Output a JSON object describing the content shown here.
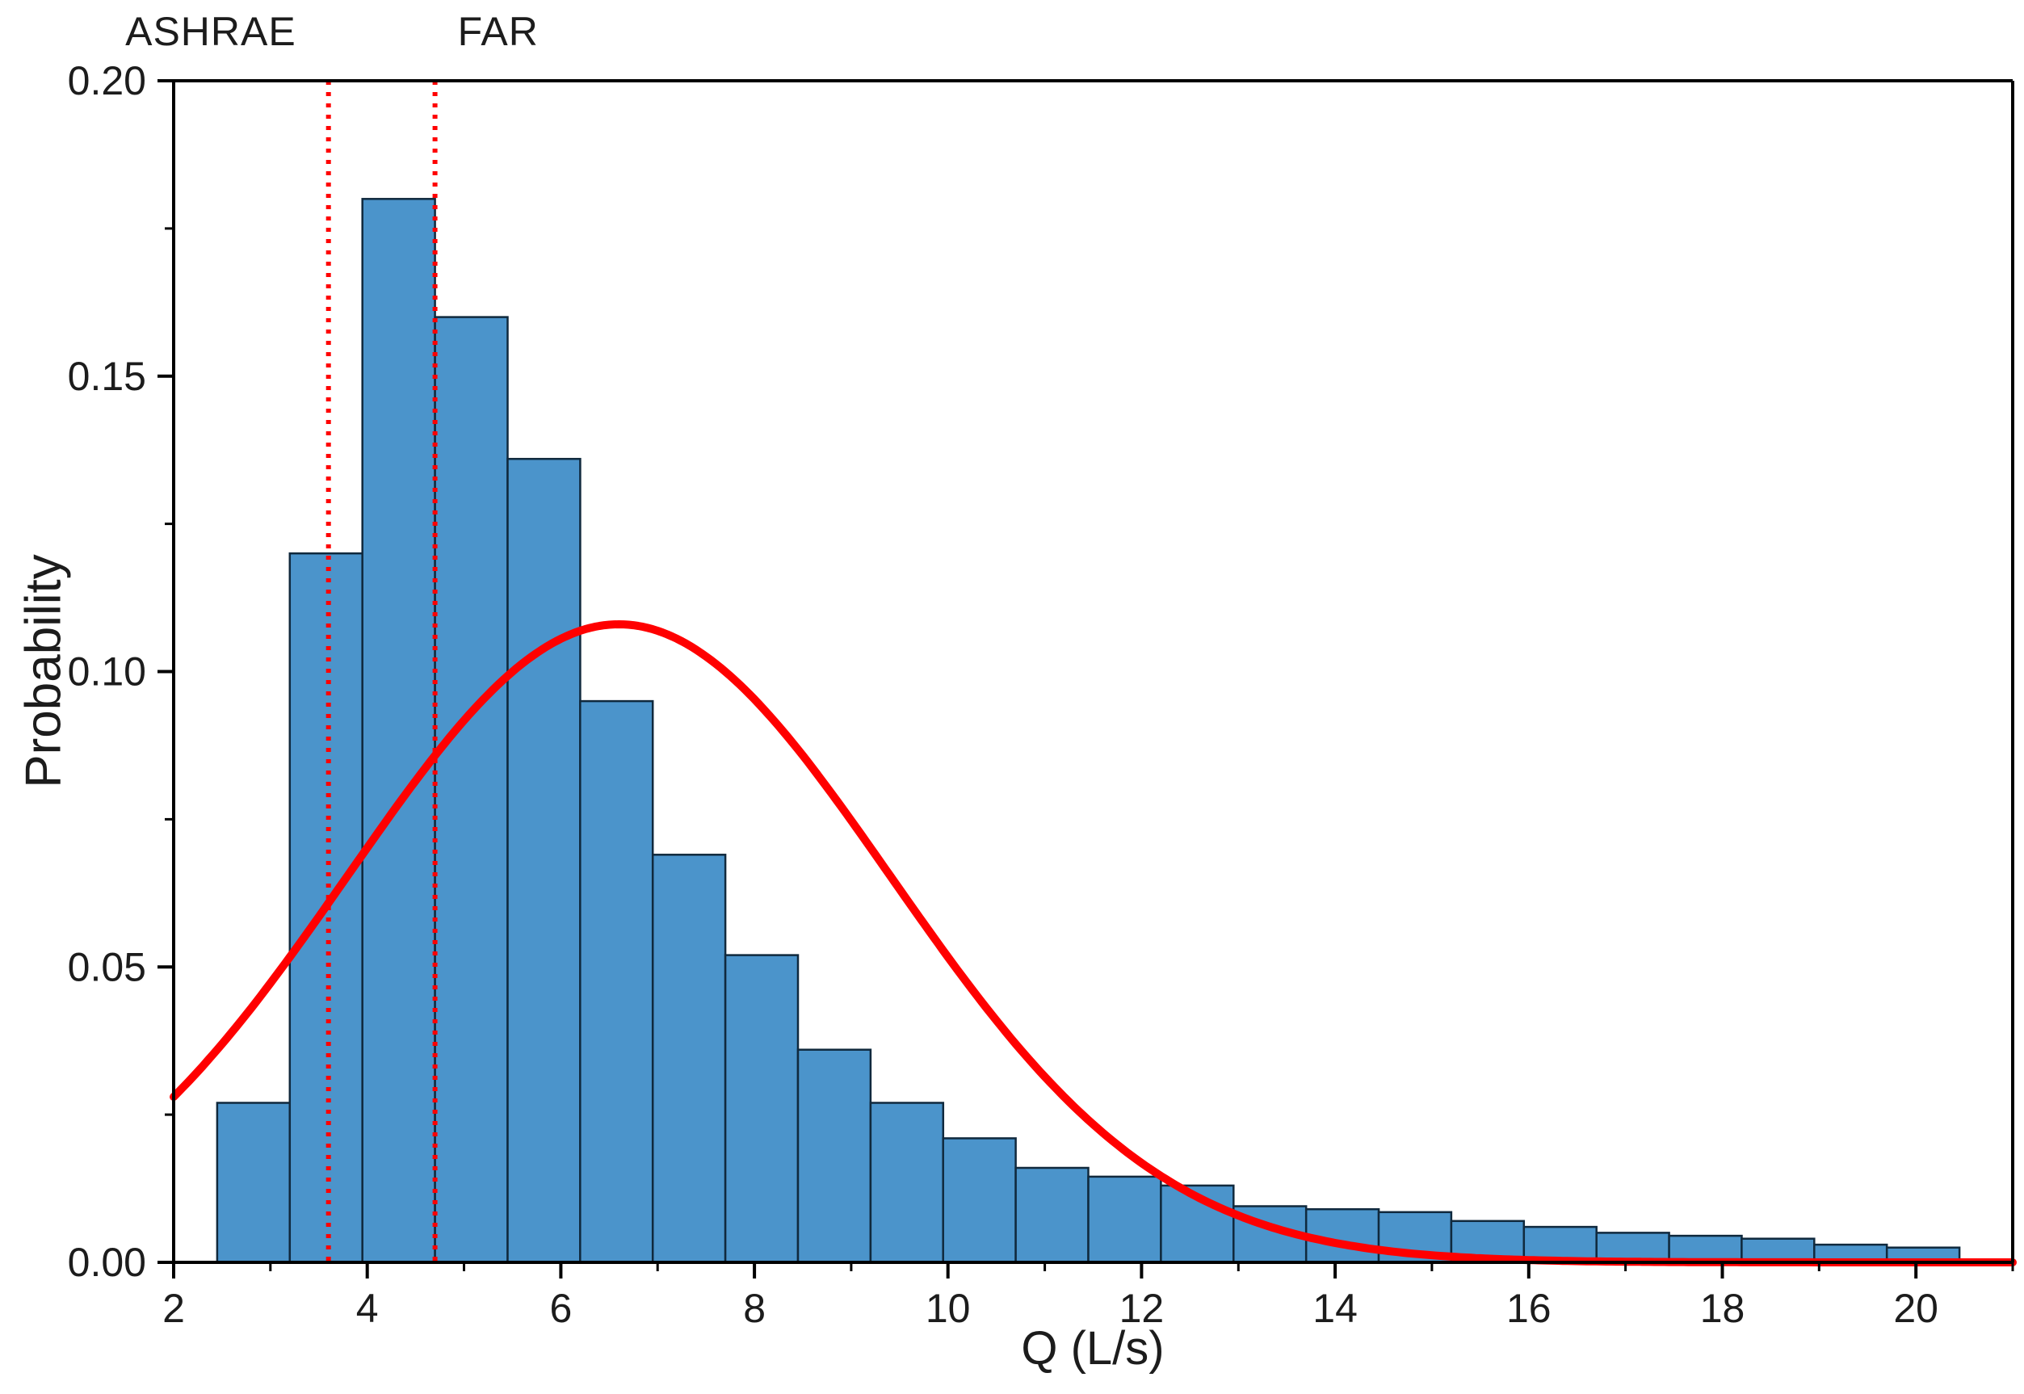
{
  "figure": {
    "background": "#ffffff",
    "axis_color": "#000000",
    "text_color": "#1c1c1c"
  },
  "chart_data": {
    "type": "bar",
    "subtype": "histogram-with-gaussian-fit",
    "title": "",
    "xlabel": "Q (L/s)",
    "ylabel": "Probability",
    "xlim": [
      2,
      21
    ],
    "ylim": [
      0,
      0.2
    ],
    "grid": false,
    "legend": "none",
    "x_major_ticks": [
      2,
      4,
      6,
      8,
      10,
      12,
      14,
      16,
      18,
      20
    ],
    "x_minor_ticks": [
      3,
      5,
      7,
      9,
      11,
      13,
      15,
      17,
      19,
      21
    ],
    "y_major_ticks": [
      0,
      0.05,
      0.1,
      0.15,
      0.2
    ],
    "y_major_tick_labels": [
      "0.00",
      "0.05",
      "0.10",
      "0.15",
      "0.20"
    ],
    "y_minor_ticks": [
      0.025,
      0.075,
      0.125,
      0.175
    ],
    "bars": {
      "bin_start": 2.45,
      "bin_width": 0.75,
      "values": [
        0.027,
        0.12,
        0.18,
        0.16,
        0.136,
        0.095,
        0.069,
        0.052,
        0.036,
        0.027,
        0.021,
        0.016,
        0.0145,
        0.013,
        0.0095,
        0.009,
        0.0085,
        0.007,
        0.006,
        0.005,
        0.0045,
        0.004,
        0.003,
        0.0025
      ],
      "fill": "#4b94cb",
      "stroke": "#10293d"
    },
    "curve": {
      "name": "normal-fit",
      "shape": "gaussian",
      "mu": 6.6,
      "sigma": 2.8,
      "amplitude": 0.108,
      "color": "#ff0000"
    },
    "annotations": [
      {
        "label": "ASHRAE",
        "x": 3.6,
        "style": "dotted",
        "color": "#ff0000"
      },
      {
        "label": "FAR",
        "x": 4.7,
        "style": "dotted",
        "color": "#ff0000"
      }
    ]
  }
}
